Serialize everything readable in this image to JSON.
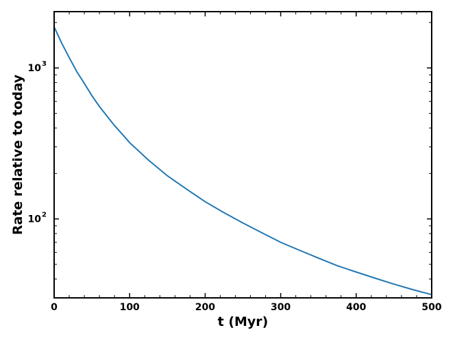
{
  "chart_data": {
    "type": "line",
    "xlabel": "t (Myr)",
    "ylabel": "Rate relative to today",
    "xlim": [
      0,
      500
    ],
    "ylim": [
      30,
      2360
    ],
    "yscale": "log",
    "grid": false,
    "legend": "none",
    "x_ticks": [
      {
        "value": 0,
        "label": "0"
      },
      {
        "value": 100,
        "label": "100"
      },
      {
        "value": 200,
        "label": "200"
      },
      {
        "value": 300,
        "label": "300"
      },
      {
        "value": 400,
        "label": "400"
      },
      {
        "value": 500,
        "label": "500"
      }
    ],
    "y_major_ticks": [
      {
        "value": 100,
        "base": "10",
        "exp": "2"
      },
      {
        "value": 1000,
        "base": "10",
        "exp": "3"
      }
    ],
    "series": [
      {
        "color": "#1f77b4",
        "x": [
          0,
          10,
          20,
          30,
          40,
          50,
          60,
          70,
          80,
          90,
          100,
          125,
          150,
          175,
          200,
          225,
          250,
          275,
          300,
          325,
          350,
          375,
          400,
          425,
          450,
          475,
          500
        ],
        "y": [
          1870,
          1460,
          1170,
          945,
          790,
          655,
          555,
          480,
          415,
          365,
          320,
          245,
          193,
          158,
          130,
          110,
          94,
          81,
          70,
          62,
          55,
          49,
          44.5,
          40.5,
          37,
          34,
          31.5
        ]
      }
    ]
  }
}
